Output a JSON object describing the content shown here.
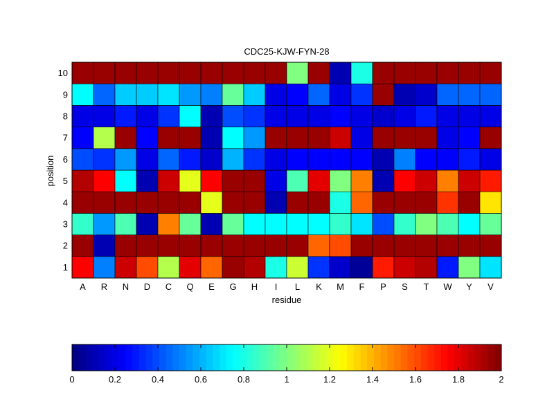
{
  "chart_data": {
    "type": "heatmap",
    "title": "CDC25-KJW-FYN-28",
    "xlabel": "residue",
    "ylabel": "position",
    "x_categories": [
      "A",
      "R",
      "N",
      "D",
      "C",
      "Q",
      "E",
      "G",
      "H",
      "I",
      "L",
      "K",
      "M",
      "F",
      "P",
      "S",
      "T",
      "W",
      "Y",
      "V"
    ],
    "y_categories": [
      "1",
      "2",
      "3",
      "4",
      "5",
      "6",
      "7",
      "8",
      "9",
      "10"
    ],
    "colorscale": "jet",
    "zlim": [
      0,
      2
    ],
    "colorbar_ticks": [
      "0",
      "0.2",
      "0.4",
      "0.6",
      "0.8",
      "1",
      "1.2",
      "1.4",
      "1.6",
      "1.8",
      "2"
    ],
    "colorbar_position": "bottom",
    "values": [
      [
        1.75,
        0.5,
        1.85,
        1.6,
        1.1,
        1.8,
        1.55,
        1.95,
        1.9,
        0.8,
        1.15,
        0.35,
        0.15,
        0.05,
        1.7,
        1.85,
        1.9,
        0.3,
        1.0,
        0.7
      ],
      [
        1.95,
        0.1,
        1.95,
        1.95,
        1.95,
        1.95,
        1.95,
        1.95,
        1.95,
        1.95,
        1.95,
        1.55,
        1.6,
        1.95,
        1.95,
        1.95,
        1.95,
        1.95,
        1.95,
        1.95
      ],
      [
        0.85,
        0.55,
        0.9,
        0.1,
        1.5,
        0.95,
        0.1,
        0.95,
        0.75,
        0.75,
        0.75,
        0.75,
        0.85,
        0.7,
        0.4,
        0.85,
        1.0,
        0.9,
        0.75,
        0.95
      ],
      [
        1.95,
        1.95,
        1.95,
        1.95,
        1.95,
        1.95,
        1.2,
        1.95,
        1.95,
        0.1,
        1.95,
        1.95,
        0.8,
        1.55,
        1.95,
        1.95,
        1.95,
        1.65,
        1.95,
        1.3
      ],
      [
        1.9,
        1.75,
        0.75,
        0.1,
        1.85,
        1.2,
        1.75,
        1.95,
        1.95,
        0.2,
        0.9,
        1.8,
        1.0,
        1.5,
        0.1,
        1.75,
        1.85,
        1.5,
        1.85,
        1.7
      ],
      [
        0.4,
        0.35,
        0.55,
        0.2,
        0.45,
        0.3,
        0.15,
        0.6,
        0.35,
        0.2,
        0.25,
        0.25,
        0.25,
        0.25,
        0.1,
        0.5,
        0.25,
        0.25,
        0.3,
        0.2
      ],
      [
        0.25,
        1.1,
        1.95,
        0.25,
        1.95,
        1.95,
        0.1,
        0.75,
        0.55,
        1.95,
        1.95,
        1.95,
        1.85,
        0.2,
        1.95,
        1.95,
        1.95,
        0.2,
        0.25,
        1.95
      ],
      [
        0.2,
        0.2,
        0.3,
        0.2,
        0.35,
        0.75,
        0.1,
        0.4,
        0.35,
        0.2,
        0.2,
        0.2,
        0.25,
        0.2,
        0.15,
        0.2,
        0.3,
        0.2,
        0.2,
        0.2
      ],
      [
        0.75,
        0.45,
        0.65,
        0.65,
        0.7,
        0.55,
        0.5,
        0.95,
        0.65,
        0.2,
        0.25,
        0.45,
        0.2,
        0.35,
        1.95,
        0.1,
        0.15,
        0.45,
        0.45,
        0.45
      ],
      [
        1.95,
        1.95,
        1.95,
        1.95,
        1.95,
        1.95,
        1.95,
        1.95,
        1.95,
        1.95,
        1.0,
        1.95,
        0.1,
        0.8,
        1.95,
        1.95,
        1.95,
        1.95,
        1.95,
        1.95
      ]
    ]
  }
}
